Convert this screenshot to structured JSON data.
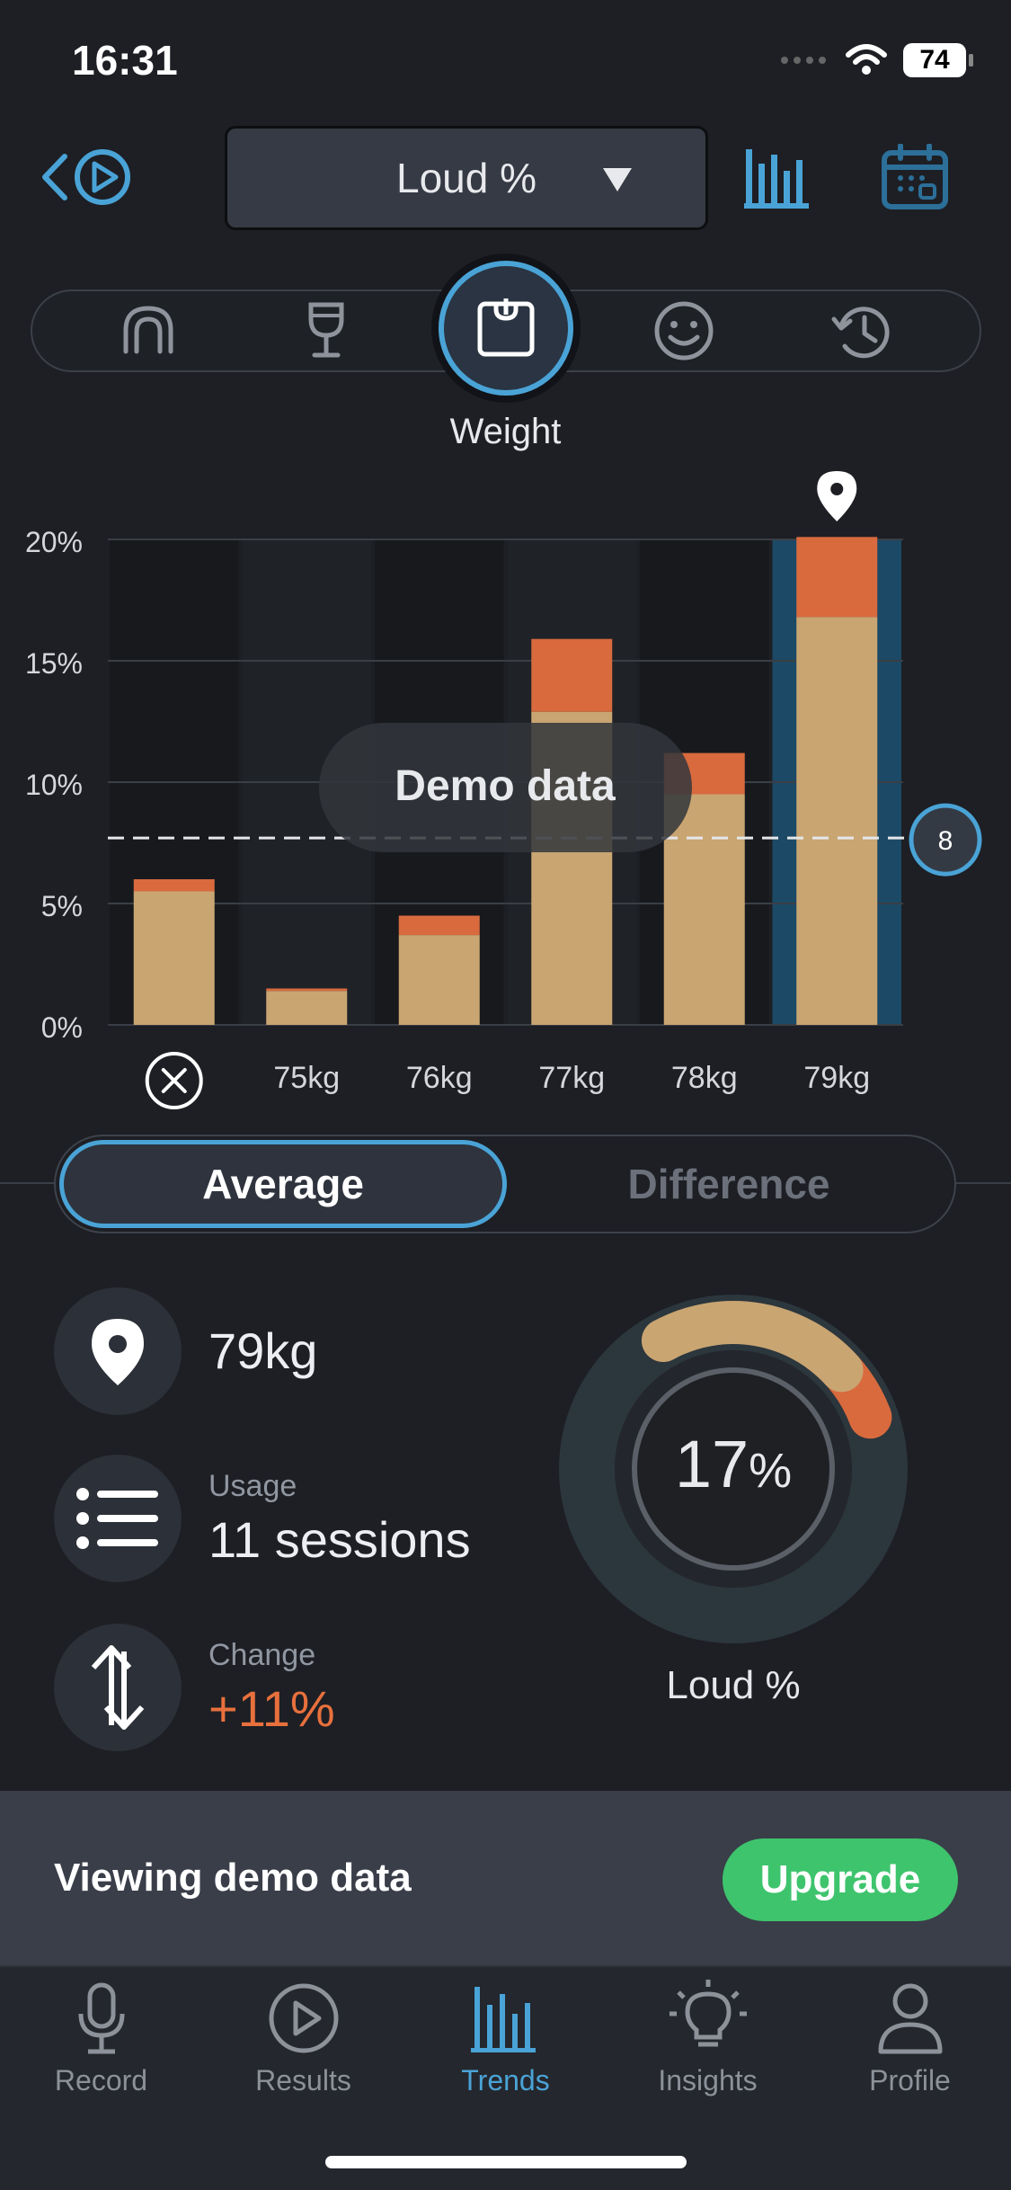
{
  "status": {
    "time": "16:31",
    "battery": "74"
  },
  "header": {
    "metric_label": "Loud %",
    "selected_factor_label": "Weight"
  },
  "factors": [
    {
      "name": "mouthguard-icon"
    },
    {
      "name": "wine-glass-icon"
    },
    {
      "name": "weight-scale-icon",
      "selected": true
    },
    {
      "name": "smiley-icon"
    },
    {
      "name": "history-clock-icon"
    }
  ],
  "chart_data": {
    "type": "bar",
    "categories": [
      "",
      "75kg",
      "76kg",
      "77kg",
      "78kg",
      "79kg"
    ],
    "series": [
      {
        "values": [
          5.5,
          1.4,
          3.7,
          12.9,
          9.5,
          16.8
        ]
      },
      {
        "values": [
          0.5,
          0.1,
          0.8,
          3.0,
          1.7,
          3.3
        ]
      }
    ],
    "yticks": [
      "0%",
      "5%",
      "10%",
      "15%",
      "20%"
    ],
    "ylim": [
      0,
      20
    ],
    "reference_line": {
      "value": 7.7,
      "badge": "8"
    },
    "highlighted_category": "79kg",
    "overlay_label": "Demo data",
    "colors": {
      "base": "#c9a572",
      "top": "#d86a3e",
      "highlight": "#1c4a66",
      "accent": "#4aa3d6"
    }
  },
  "segmented": {
    "active": "Average",
    "inactive": "Difference"
  },
  "stats": {
    "weight_value": "79kg",
    "usage_caption": "Usage",
    "usage_value": "11 sessions",
    "change_caption": "Change",
    "change_value": "+11%"
  },
  "gauge": {
    "value": "17",
    "unit": "%",
    "label": "Loud %",
    "fraction": 0.17
  },
  "banner": {
    "text": "Viewing demo data",
    "button": "Upgrade"
  },
  "tabs": [
    {
      "label": "Record",
      "icon": "microphone-icon"
    },
    {
      "label": "Results",
      "icon": "play-circle-icon"
    },
    {
      "label": "Trends",
      "icon": "bar-chart-icon",
      "active": true
    },
    {
      "label": "Insights",
      "icon": "lightbulb-icon"
    },
    {
      "label": "Profile",
      "icon": "person-icon"
    }
  ]
}
